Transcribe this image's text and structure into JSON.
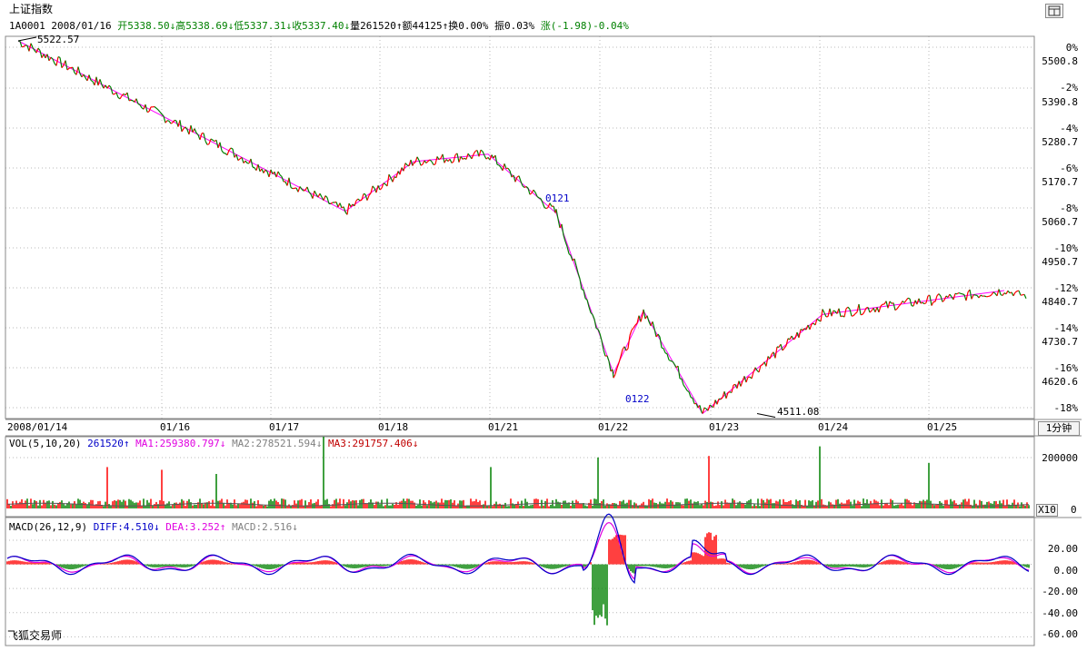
{
  "header": {
    "title": "上证指数",
    "layout_icon": "window-layout-icon",
    "code": "1A0001",
    "date": "2008/01/16",
    "open": "开5338.50↓",
    "high": "高5338.69↓",
    "low": "低5337.31↓",
    "close": "收5337.40↓",
    "volume": "量261520↑",
    "amount": "额44125↑",
    "turnover": "换0.00%",
    "amplitude": "振0.03%",
    "change": "涨(-1.98)-0.04%"
  },
  "price_panel": {
    "high_marker": "5522.57",
    "low_marker": "4511.08",
    "annotation_a": "0121",
    "annotation_b": "0122",
    "y_right_pct": [
      "0%",
      "-2%",
      "-4%",
      "-6%",
      "-8%",
      "-10%",
      "-12%",
      "-14%",
      "-16%",
      "-18%"
    ],
    "y_right_price": [
      "5500.8",
      "5390.8",
      "5280.7",
      "5170.7",
      "5060.7",
      "4950.7",
      "4840.7",
      "4730.7",
      "4620.6"
    ]
  },
  "time_axis": {
    "labels": [
      "2008/01/14",
      "01/16",
      "01/17",
      "01/18",
      "01/21",
      "01/22",
      "01/23",
      "01/24",
      "01/25"
    ],
    "period_button": "1分钟"
  },
  "volume_panel": {
    "label": "VOL(5,10,20)",
    "vol": "261520↑",
    "ma1": "MA1:259380.797↓",
    "ma2": "MA2:278521.594↓",
    "ma3": "MA3:291757.406↓",
    "y_labels": [
      "200000"
    ],
    "zero_label": "0",
    "scale_button": "X10"
  },
  "macd_panel": {
    "label": "MACD(26,12,9)",
    "diff": "DIFF:4.510↓",
    "dea": "DEA:3.252↑",
    "macd": "MACD:2.516↓",
    "y_labels": [
      "20.00",
      "0.00",
      "-20.00",
      "-40.00",
      "-60.00"
    ]
  },
  "footer": {
    "brand": "飞狐交易师"
  },
  "colors": {
    "up": "#ff0000",
    "down": "#008000",
    "zigzag": "#ff00ff",
    "diff": "#0000c8",
    "dea": "#e000e0"
  },
  "chart_data": [
    {
      "type": "line",
      "name_shown": "上证指数",
      "x_labels": [
        "2008/01/14",
        "01/16",
        "01/17",
        "01/18",
        "01/21",
        "01/22",
        "01/23",
        "01/24",
        "01/25"
      ],
      "ylim": [
        4500,
        5530
      ],
      "key_points": [
        {
          "x": "2008/01/14",
          "y": 5522.57
        },
        {
          "x": "01/17",
          "y": 5060
        },
        {
          "x": "01/18",
          "y": 5195
        },
        {
          "x": "01/21",
          "y": 5215
        },
        {
          "x": "01/21",
          "y": 5055
        },
        {
          "x": "01/22",
          "y": 4620
        },
        {
          "x": "01/22",
          "y": 4790
        },
        {
          "x": "01/23",
          "y": 4511.08
        },
        {
          "x": "01/24",
          "y": 4780
        },
        {
          "x": "01/25",
          "y": 4845
        }
      ]
    },
    {
      "type": "bar",
      "name_shown": "VOL(5,10,20)",
      "ylim": [
        0,
        250000
      ]
    },
    {
      "type": "bar",
      "name_shown": "MACD(26,12,9)",
      "ylim": [
        -65,
        35
      ]
    }
  ]
}
